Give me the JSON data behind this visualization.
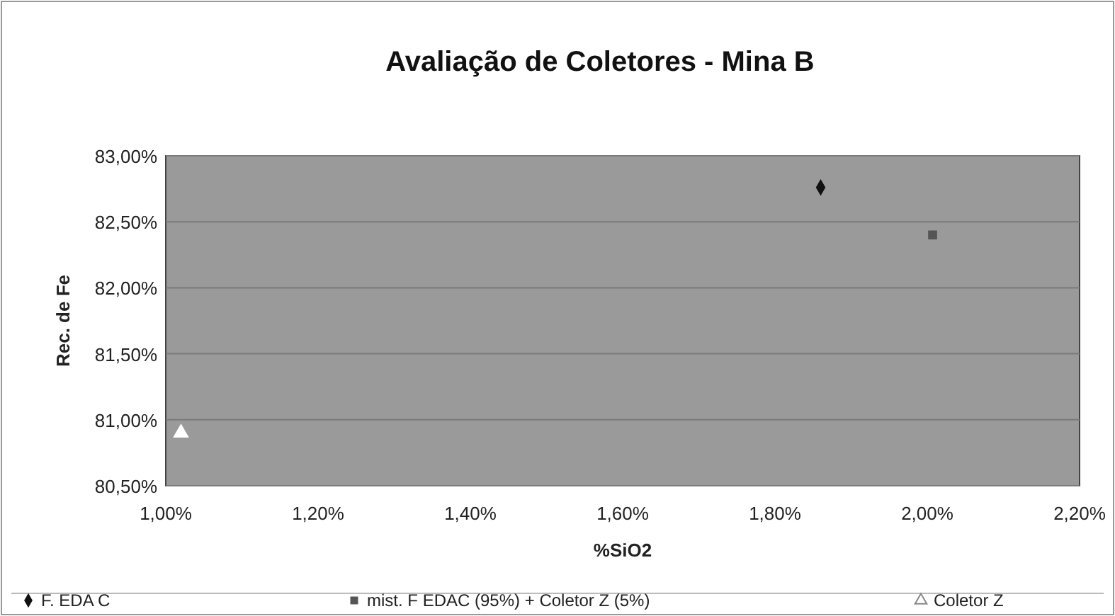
{
  "chart_data": {
    "type": "scatter",
    "title": "Avaliação de Coletores - Mina B",
    "xlabel": "%SiO2",
    "ylabel": "Rec. de Fe",
    "xlim": [
      0.01,
      0.022
    ],
    "xticks": [
      {
        "value": 0.01,
        "label": "1,00%"
      },
      {
        "value": 0.012,
        "label": "1,20%"
      },
      {
        "value": 0.014,
        "label": "1,40%"
      },
      {
        "value": 0.016,
        "label": "1,60%"
      },
      {
        "value": 0.018,
        "label": "1,80%"
      },
      {
        "value": 0.02,
        "label": "2,00%"
      },
      {
        "value": 0.022,
        "label": "2,20%"
      }
    ],
    "ylim": [
      0.805,
      0.83
    ],
    "yticks": [
      {
        "value": 0.805,
        "label": "80,50%"
      },
      {
        "value": 0.81,
        "label": "81,00%"
      },
      {
        "value": 0.815,
        "label": "81,50%"
      },
      {
        "value": 0.82,
        "label": "82,00%"
      },
      {
        "value": 0.825,
        "label": "82,50%"
      },
      {
        "value": 0.83,
        "label": "83,00%"
      }
    ],
    "grid": "y",
    "legend": "bottom",
    "series": [
      {
        "name": "F. EDA C",
        "color": "#111111",
        "marker": "diamond",
        "x": [
          0.0186
        ],
        "values": [
          0.8276
        ]
      },
      {
        "name": "mist. F EDAC (95%) + Coletor Z (5%)",
        "color": "#555555",
        "marker": "square",
        "x": [
          0.02007
        ],
        "values": [
          0.824
        ]
      },
      {
        "name": "Coletor Z",
        "color": "#ffffff",
        "marker": "triangle",
        "x": [
          0.0102
        ],
        "values": [
          0.809
        ]
      }
    ]
  }
}
